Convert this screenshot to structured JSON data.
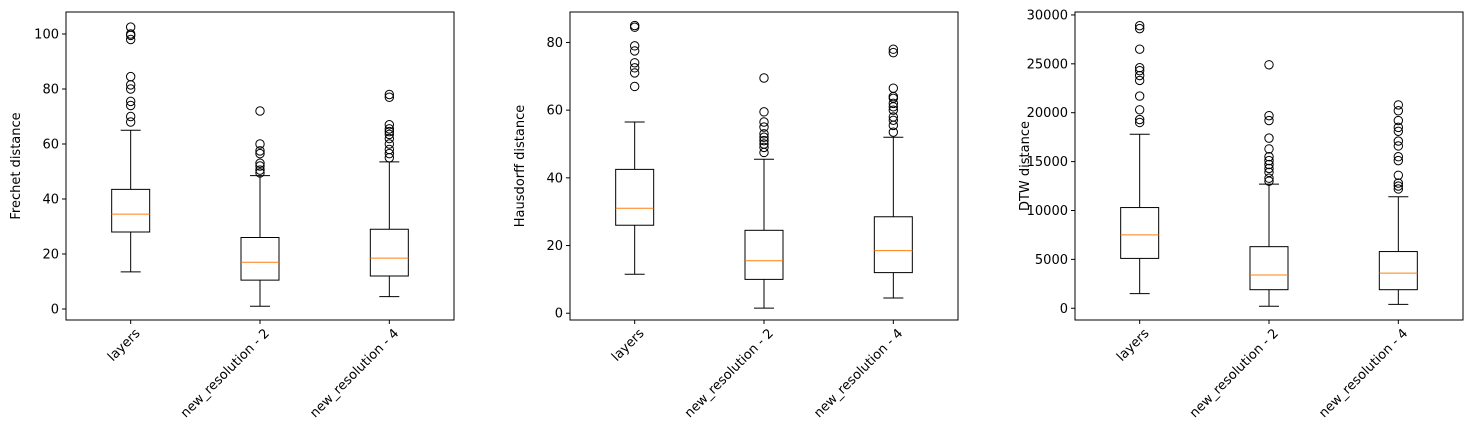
{
  "chart_data": [
    {
      "type": "box",
      "ylabel": "Frechet distance",
      "categories": [
        "layers",
        "new_resolution - 2",
        "new_resolution - 4"
      ],
      "ylim": [
        -4,
        108
      ],
      "yticks": [
        0,
        20,
        40,
        60,
        80,
        100
      ],
      "boxes": [
        {
          "whisker_low": 13.5,
          "q1": 28,
          "median": 34.5,
          "q3": 43.5,
          "whisker_high": 65,
          "outliers": [
            68,
            70,
            74,
            75.5,
            80,
            81.5,
            84.5,
            98,
            99.5,
            100,
            102.5
          ]
        },
        {
          "whisker_low": 1,
          "q1": 10.5,
          "median": 17,
          "q3": 26,
          "whisker_high": 48.5,
          "outliers": [
            49.5,
            50.5,
            52,
            53,
            56.5,
            57.5,
            60,
            72
          ]
        },
        {
          "whisker_low": 4.5,
          "q1": 12,
          "median": 18.5,
          "q3": 29,
          "whisker_high": 53.5,
          "outliers": [
            55,
            56.5,
            58,
            60,
            62,
            63.5,
            64.5,
            65.5,
            67,
            77,
            78
          ]
        }
      ]
    },
    {
      "type": "box",
      "ylabel": "Hausdorff distance",
      "categories": [
        "layers",
        "new_resolution - 2",
        "new_resolution - 4"
      ],
      "ylim": [
        -2,
        89
      ],
      "yticks": [
        0,
        20,
        40,
        60,
        80
      ],
      "boxes": [
        {
          "whisker_low": 11.5,
          "q1": 26,
          "median": 31,
          "q3": 42.5,
          "whisker_high": 56.5,
          "outliers": [
            67,
            71,
            72.5,
            74,
            77.5,
            79,
            84.5,
            85
          ]
        },
        {
          "whisker_low": 1.5,
          "q1": 10,
          "median": 15.5,
          "q3": 24.5,
          "whisker_high": 45.5,
          "outliers": [
            47.5,
            49,
            50,
            51,
            52,
            53,
            55,
            56.5,
            59.5,
            69.5
          ]
        },
        {
          "whisker_low": 4.5,
          "q1": 12,
          "median": 18.5,
          "q3": 28.5,
          "whisker_high": 52,
          "outliers": [
            53.5,
            55.5,
            57,
            58,
            60,
            61,
            62,
            63.5,
            64,
            66.5,
            77,
            78
          ]
        }
      ]
    },
    {
      "type": "box",
      "ylabel": "DTW distance",
      "categories": [
        "layers",
        "new_resolution - 2",
        "new_resolution - 4"
      ],
      "ylim": [
        -1200,
        30300
      ],
      "yticks": [
        0,
        5000,
        10000,
        15000,
        20000,
        25000,
        30000
      ],
      "boxes": [
        {
          "whisker_low": 1500,
          "q1": 5100,
          "median": 7500,
          "q3": 10300,
          "whisker_high": 17800,
          "outliers": [
            19000,
            19300,
            20300,
            21700,
            23300,
            23800,
            24300,
            24600,
            26500,
            28600,
            28900
          ]
        },
        {
          "whisker_low": 200,
          "q1": 1900,
          "median": 3400,
          "q3": 6300,
          "whisker_high": 12700,
          "outliers": [
            13000,
            13300,
            13900,
            14300,
            14700,
            15100,
            15500,
            16300,
            17400,
            19200,
            19700,
            24900
          ]
        },
        {
          "whisker_low": 400,
          "q1": 1900,
          "median": 3600,
          "q3": 5800,
          "whisker_high": 11400,
          "outliers": [
            12200,
            12500,
            12800,
            13600,
            15100,
            15500,
            16600,
            17100,
            18100,
            18500,
            19200,
            20200,
            20800
          ]
        }
      ]
    }
  ]
}
